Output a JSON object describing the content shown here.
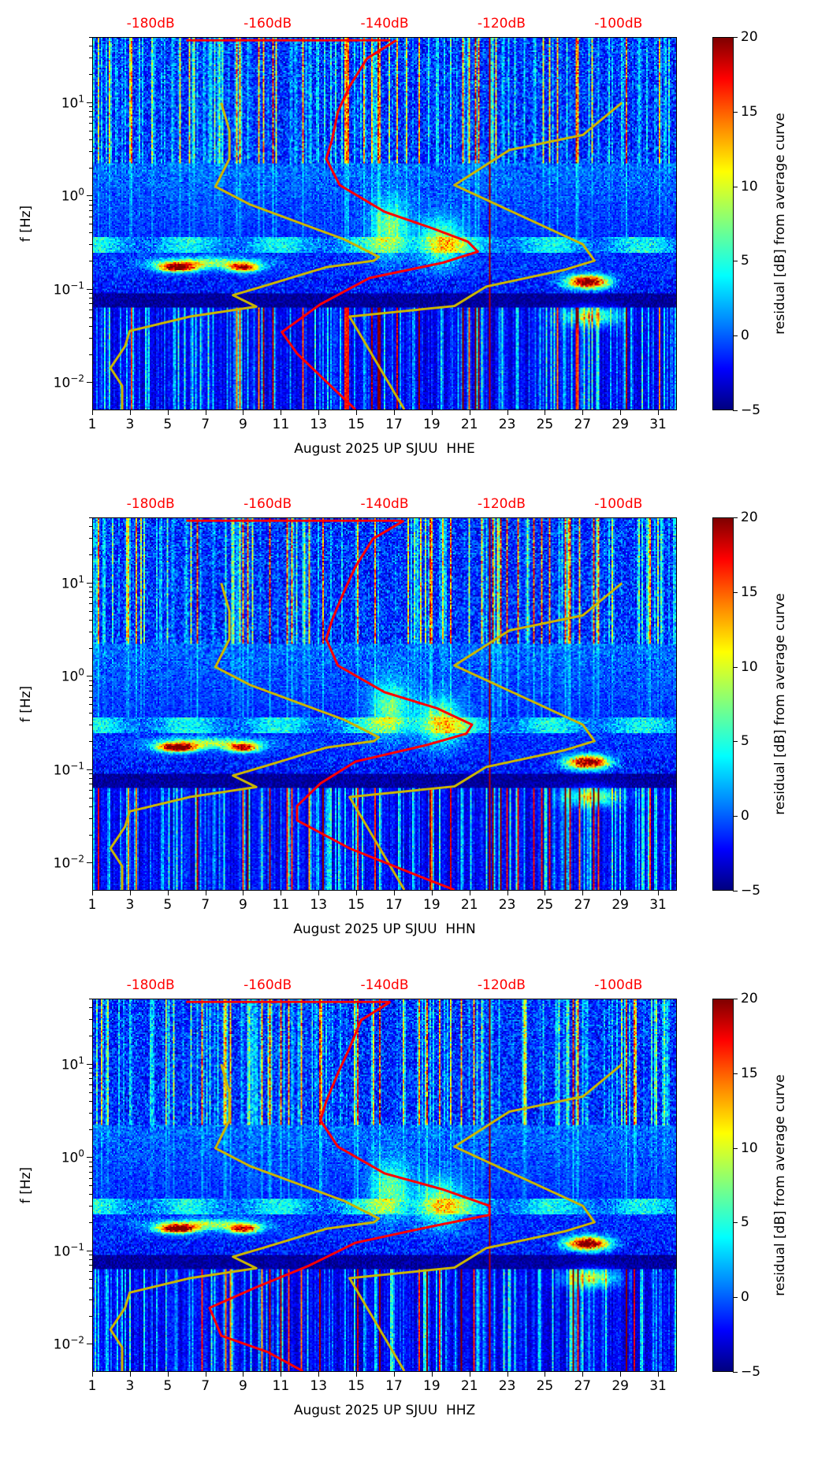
{
  "chart_data": [
    {
      "type": "heatmap",
      "title": "",
      "xlabel": "August 2025 UP SJUU  HHE",
      "ylabel": "f [Hz]",
      "x_range_days": [
        1,
        32
      ],
      "y_range_hz": [
        0.005,
        50
      ],
      "y_scale": "log",
      "x_ticks": [
        "1",
        "3",
        "5",
        "7",
        "9",
        "11",
        "13",
        "15",
        "17",
        "19",
        "21",
        "23",
        "25",
        "27",
        "29",
        "31"
      ],
      "y_ticks": [
        {
          "base": "10",
          "exp": "−2",
          "value": 0.01
        },
        {
          "base": "10",
          "exp": "−1",
          "value": 0.1
        },
        {
          "base": "10",
          "exp": "0",
          "value": 1
        },
        {
          "base": "10",
          "exp": "1",
          "value": 10
        }
      ],
      "top_axis_range_db": [
        -190,
        -90
      ],
      "top_ticks": [
        {
          "label": "-180dB",
          "value": -180
        },
        {
          "label": "-160dB",
          "value": -160
        },
        {
          "label": "-140dB",
          "value": -140
        },
        {
          "label": "-120dB",
          "value": -120
        },
        {
          "label": "-100dB",
          "value": -100
        }
      ],
      "colorbar": {
        "label": "residual [dB] from average curve",
        "range": [
          -5,
          20
        ],
        "ticks": [
          "20",
          "15",
          "10",
          "5",
          "0",
          "−5"
        ],
        "colormap": "jet"
      },
      "red_curve_db_hz": [
        [
          -138,
          47
        ],
        [
          -143,
          30
        ],
        [
          -146,
          15
        ],
        [
          -148,
          8
        ],
        [
          -149,
          4
        ],
        [
          -150,
          2.5
        ],
        [
          -147.7,
          1.3
        ],
        [
          -140,
          0.67
        ],
        [
          -132,
          0.45
        ],
        [
          -125.7,
          0.32
        ],
        [
          -124,
          0.25
        ],
        [
          -130,
          0.19
        ],
        [
          -142.6,
          0.13
        ],
        [
          -151,
          0.068
        ],
        [
          -157.6,
          0.034
        ],
        [
          -155,
          0.02
        ],
        [
          -145,
          0.005
        ]
      ],
      "red_top_line_db_hz": [
        [
          -174,
          47
        ],
        [
          -139,
          47
        ]
      ],
      "seed": 11
    },
    {
      "type": "heatmap",
      "xlabel": "August 2025 UP SJUU  HHN",
      "ylabel": "f [Hz]",
      "x_range_days": [
        1,
        32
      ],
      "y_range_hz": [
        0.005,
        50
      ],
      "y_scale": "log",
      "x_ticks": [
        "1",
        "3",
        "5",
        "7",
        "9",
        "11",
        "13",
        "15",
        "17",
        "19",
        "21",
        "23",
        "25",
        "27",
        "29",
        "31"
      ],
      "y_ticks": [
        {
          "base": "10",
          "exp": "−2",
          "value": 0.01
        },
        {
          "base": "10",
          "exp": "−1",
          "value": 0.1
        },
        {
          "base": "10",
          "exp": "0",
          "value": 1
        },
        {
          "base": "10",
          "exp": "1",
          "value": 10
        }
      ],
      "top_axis_range_db": [
        -190,
        -90
      ],
      "top_ticks": [
        {
          "label": "-180dB",
          "value": -180
        },
        {
          "label": "-160dB",
          "value": -160
        },
        {
          "label": "-140dB",
          "value": -140
        },
        {
          "label": "-120dB",
          "value": -120
        },
        {
          "label": "-100dB",
          "value": -100
        }
      ],
      "colorbar": {
        "label": "residual [dB] from average curve",
        "range": [
          -5,
          20
        ],
        "ticks": [
          "20",
          "15",
          "10",
          "5",
          "0",
          "−5"
        ],
        "colormap": "jet"
      },
      "red_curve_db_hz": [
        [
          -136.7,
          47
        ],
        [
          -142,
          30
        ],
        [
          -145,
          15
        ],
        [
          -147,
          8
        ],
        [
          -149,
          4
        ],
        [
          -150,
          2.5
        ],
        [
          -148,
          1.3
        ],
        [
          -140,
          0.67
        ],
        [
          -131,
          0.45
        ],
        [
          -125,
          0.3
        ],
        [
          -126,
          0.24
        ],
        [
          -133,
          0.18
        ],
        [
          -145,
          0.12
        ],
        [
          -151,
          0.07
        ],
        [
          -155,
          0.04
        ],
        [
          -155,
          0.028
        ],
        [
          -146,
          0.014
        ],
        [
          -134,
          0.007
        ],
        [
          -128,
          0.005
        ]
      ],
      "red_top_line_db_hz": [
        [
          -174,
          47
        ],
        [
          -137,
          47
        ]
      ],
      "seed": 23
    },
    {
      "type": "heatmap",
      "xlabel": "August 2025 UP SJUU  HHZ",
      "ylabel": "f [Hz]",
      "x_range_days": [
        1,
        32
      ],
      "y_range_hz": [
        0.005,
        50
      ],
      "y_scale": "log",
      "x_ticks": [
        "1",
        "3",
        "5",
        "7",
        "9",
        "11",
        "13",
        "15",
        "17",
        "19",
        "21",
        "23",
        "25",
        "27",
        "29",
        "31"
      ],
      "y_ticks": [
        {
          "base": "10",
          "exp": "−2",
          "value": 0.01
        },
        {
          "base": "10",
          "exp": "−1",
          "value": 0.1
        },
        {
          "base": "10",
          "exp": "0",
          "value": 1
        },
        {
          "base": "10",
          "exp": "1",
          "value": 10
        }
      ],
      "top_axis_range_db": [
        -190,
        -90
      ],
      "top_ticks": [
        {
          "label": "-180dB",
          "value": -180
        },
        {
          "label": "-160dB",
          "value": -160
        },
        {
          "label": "-140dB",
          "value": -140
        },
        {
          "label": "-120dB",
          "value": -120
        },
        {
          "label": "-100dB",
          "value": -100
        }
      ],
      "colorbar": {
        "label": "residual [dB] from average curve",
        "range": [
          -5,
          20
        ],
        "ticks": [
          "20",
          "15",
          "10",
          "5",
          "0",
          "−5"
        ],
        "colormap": "jet"
      },
      "red_curve_db_hz": [
        [
          -139,
          47
        ],
        [
          -144,
          30
        ],
        [
          -146,
          15
        ],
        [
          -148,
          8
        ],
        [
          -150,
          4
        ],
        [
          -151,
          2.5
        ],
        [
          -148,
          1.3
        ],
        [
          -140,
          0.67
        ],
        [
          -130,
          0.45
        ],
        [
          -122,
          0.3
        ],
        [
          -122,
          0.24
        ],
        [
          -132,
          0.18
        ],
        [
          -145,
          0.12
        ],
        [
          -153,
          0.068
        ],
        [
          -162,
          0.04
        ],
        [
          -170,
          0.024
        ],
        [
          -168,
          0.012
        ],
        [
          -160,
          0.008
        ],
        [
          -154,
          0.005
        ]
      ],
      "red_top_line_db_hz": [
        [
          -174,
          47
        ],
        [
          -139,
          47
        ]
      ],
      "seed": 37
    }
  ],
  "reference_curves": {
    "low_noise_model_db_hz": [
      [
        -168,
        10
      ],
      [
        -166.6,
        5
      ],
      [
        -166.6,
        2.5
      ],
      [
        -169,
        1.25
      ],
      [
        -163,
        0.8
      ],
      [
        -147,
        0.34
      ],
      [
        -141,
        0.22
      ],
      [
        -141.8,
        0.2
      ],
      [
        -150,
        0.17
      ],
      [
        -161,
        0.105
      ],
      [
        -166,
        0.085
      ],
      [
        -162,
        0.064
      ],
      [
        -173.4,
        0.05
      ],
      [
        -183.7,
        0.035
      ],
      [
        -184.5,
        0.024
      ],
      [
        -187,
        0.014
      ],
      [
        -185,
        0.009
      ],
      [
        -185,
        0.005
      ]
    ],
    "high_noise_model_db_hz": [
      [
        -99.3,
        10
      ],
      [
        -106,
        4.5
      ],
      [
        -118.6,
        3.1
      ],
      [
        -128,
        1.3
      ],
      [
        -106,
        0.3
      ],
      [
        -104,
        0.2
      ],
      [
        -109,
        0.16
      ],
      [
        -122.6,
        0.105
      ],
      [
        -128,
        0.065
      ],
      [
        -146,
        0.05
      ],
      [
        -136.6,
        0.005
      ]
    ],
    "low_color": "#c8b400",
    "high_color": "#c8b400",
    "average_color": "#ff0000",
    "event_line_day": 22.1
  }
}
